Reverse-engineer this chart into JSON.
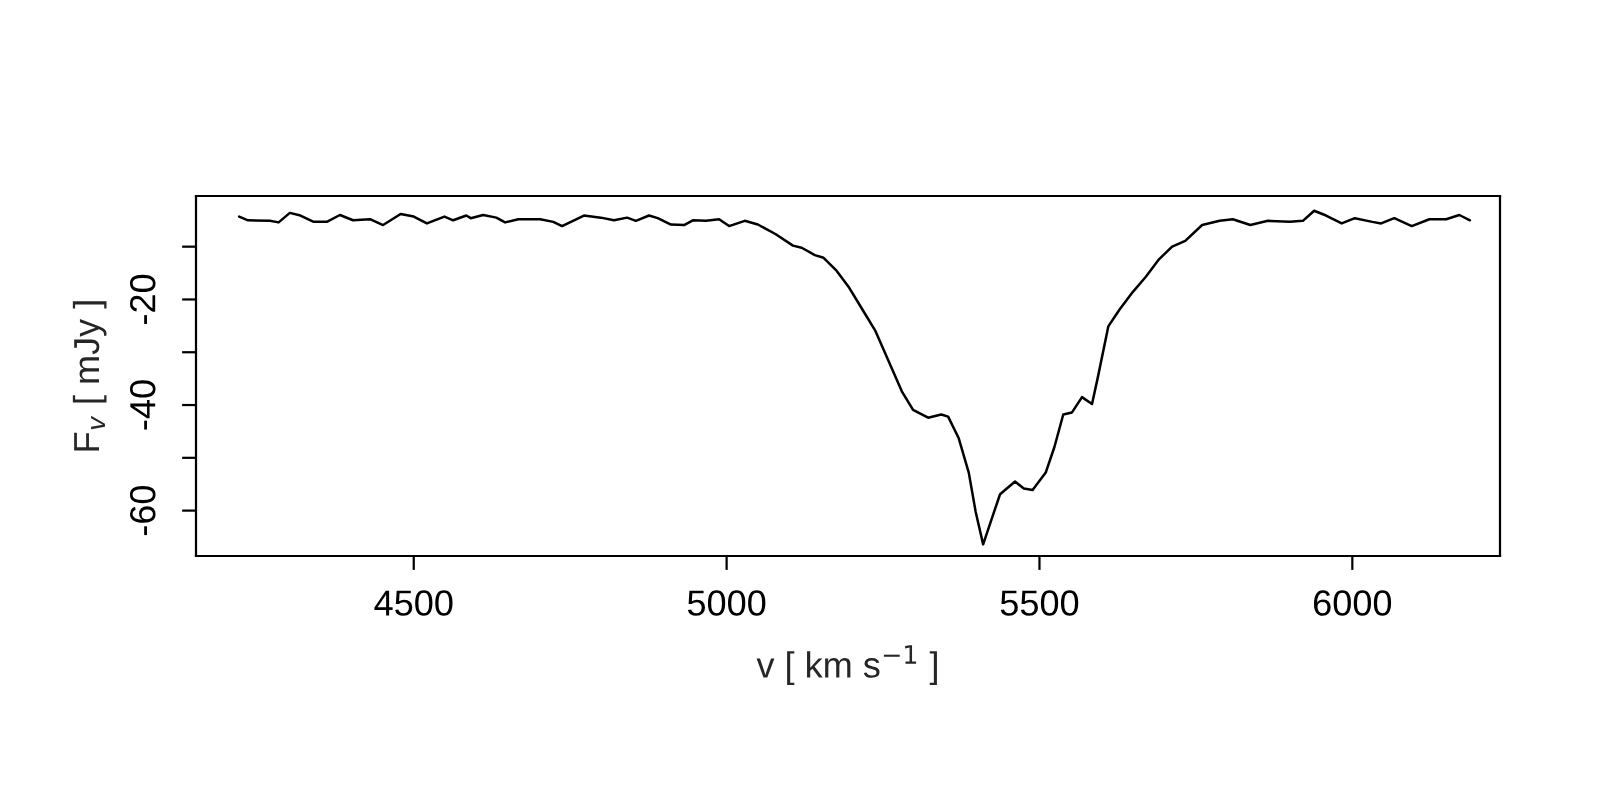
{
  "chart_data": {
    "type": "line",
    "xlabel": "v [ km s$^{−1}$ ]",
    "ylabel": "F$_{v}$ [ mJy ]",
    "xlim": [
      4152,
      6236
    ],
    "ylim": [
      -68.6,
      -0.4
    ],
    "xticks": [
      4500,
      5000,
      5500,
      6000
    ],
    "yticks": [
      {
        "value": -10,
        "label": null
      },
      -20,
      {
        "value": -30,
        "label": null
      },
      -40,
      {
        "value": -50,
        "label": null
      },
      -60
    ],
    "grid": false,
    "marker": "none",
    "line_style": "solid",
    "series": [
      {
        "color": "#000000",
        "x": [
          4221,
          4235,
          4270,
          4284,
          4302,
          4319,
          4340,
          4361,
          4382,
          4403,
          4430,
          4451,
          4479,
          4500,
          4521,
          4549,
          4563,
          4584,
          4591,
          4611,
          4632,
          4646,
          4667,
          4702,
          4723,
          4737,
          4772,
          4799,
          4820,
          4841,
          4855,
          4876,
          4890,
          4911,
          4932,
          4946,
          4967,
          4988,
          5004,
          5029,
          5050,
          5078,
          5106,
          5120,
          5141,
          5155,
          5176,
          5196,
          5217,
          5238,
          5259,
          5280,
          5298,
          5322,
          5343,
          5354,
          5371,
          5387,
          5398,
          5410,
          5423,
          5437,
          5461,
          5475,
          5489,
          5510,
          5524,
          5538,
          5552,
          5568,
          5584,
          5593,
          5610,
          5628,
          5649,
          5670,
          5691,
          5712,
          5733,
          5760,
          5788,
          5809,
          5837,
          5865,
          5900,
          5921,
          5939,
          5958,
          5983,
          6004,
          6032,
          6046,
          6067,
          6095,
          6123,
          6150,
          6171,
          6188
        ],
        "values": [
          -4.3,
          -5.0,
          -5.1,
          -5.4,
          -3.6,
          -4.1,
          -5.3,
          -5.3,
          -4.0,
          -5.0,
          -4.8,
          -5.9,
          -3.8,
          -4.3,
          -5.6,
          -4.3,
          -5.0,
          -4.1,
          -4.6,
          -4.0,
          -4.5,
          -5.4,
          -4.8,
          -4.8,
          -5.3,
          -6.1,
          -4.1,
          -4.5,
          -5.0,
          -4.5,
          -5.1,
          -4.1,
          -4.6,
          -5.8,
          -5.9,
          -5.0,
          -5.1,
          -4.8,
          -6.1,
          -5.1,
          -5.8,
          -7.6,
          -9.8,
          -10.2,
          -11.6,
          -12.1,
          -14.6,
          -17.8,
          -21.9,
          -26.0,
          -31.7,
          -37.4,
          -40.9,
          -42.4,
          -41.8,
          -42.2,
          -46.3,
          -52.8,
          -60.2,
          -66.4,
          -61.8,
          -56.9,
          -54.5,
          -55.8,
          -56.1,
          -52.8,
          -47.9,
          -41.8,
          -41.4,
          -38.5,
          -39.8,
          -34.9,
          -25.1,
          -21.9,
          -18.6,
          -15.7,
          -12.4,
          -10.0,
          -8.9,
          -5.9,
          -5.1,
          -4.8,
          -5.9,
          -5.1,
          -5.3,
          -5.1,
          -3.2,
          -4.1,
          -5.6,
          -4.6,
          -5.3,
          -5.6,
          -4.6,
          -6.1,
          -4.8,
          -4.8,
          -4.0,
          -5.0
        ]
      }
    ]
  }
}
